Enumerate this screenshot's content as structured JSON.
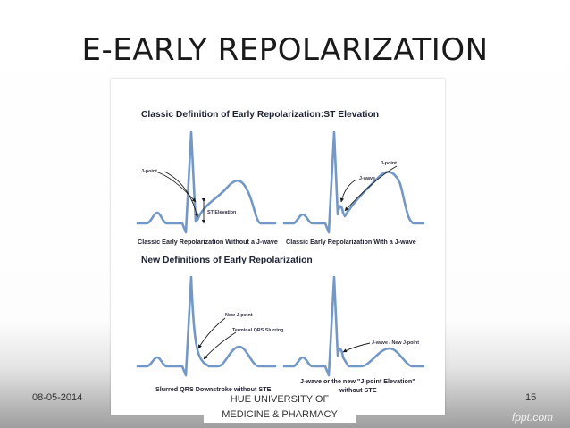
{
  "slide": {
    "title": "E-EARLY REPOLARIZATION",
    "footer_date": "08-05-2014",
    "footer_center_line1": "HUE UNIVERSITY OF",
    "footer_center_line2": "MEDICINE & PHARMACY",
    "page_number": "15",
    "watermark": "fppt.com"
  },
  "figure": {
    "section1_heading": "Classic Definition of Early Repolarization:ST Elevation",
    "section2_heading": "New Definitions of Early Repolarization",
    "panel1": {
      "caption": "Classic Early Repolarization Without a J-wave",
      "label_jpoint": "J-point",
      "label_st": "ST Elevation"
    },
    "panel2": {
      "caption": "Classic Early Repolarization With a J-wave",
      "label_jpoint": "J-point",
      "label_jwave": "J-wave"
    },
    "panel3": {
      "caption": "Slurred QRS Downstroke without STE",
      "label_newj": "New J-point",
      "label_slur": "Terminal QRS Slurring"
    },
    "panel4": {
      "caption_line1": "J-wave or the new \"J-point Elevation\"",
      "caption_line2": "without STE",
      "label_jwave": "J-wave / New J-point"
    }
  },
  "colors": {
    "ecg_trace": "#7398c6",
    "title_text": "#1a1a1a"
  }
}
